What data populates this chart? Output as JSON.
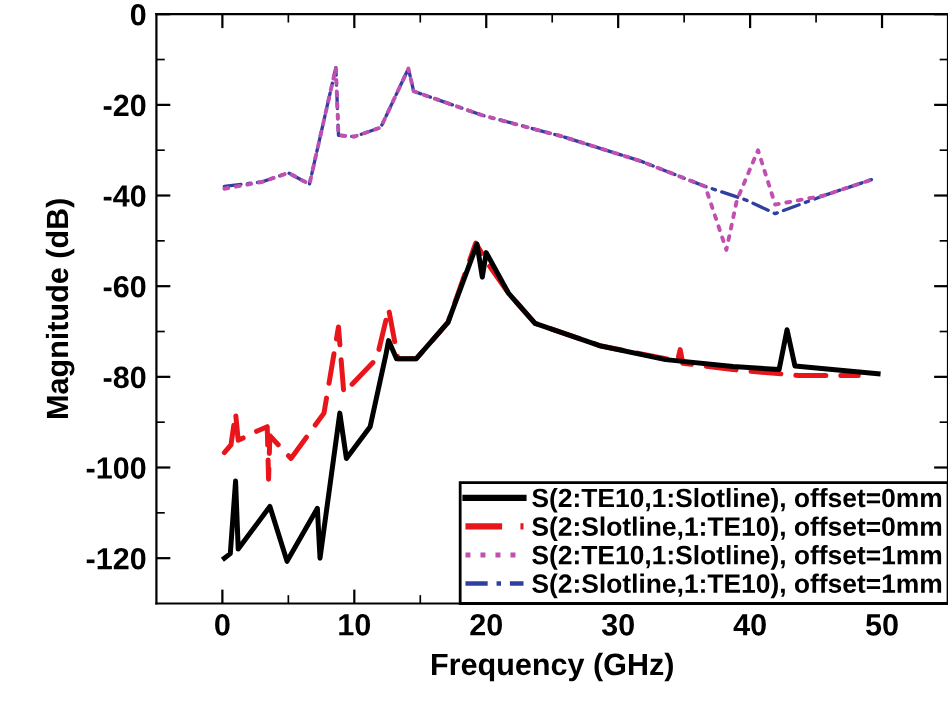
{
  "chart_data": {
    "type": "line",
    "xlabel": "Frequency (GHz)",
    "ylabel": "Magnitude (dB)",
    "xlim": [
      -5,
      55
    ],
    "ylim": [
      -130,
      0
    ],
    "xticks": [
      0,
      {
        "value": 5,
        "label": null
      },
      10,
      {
        "value": 15,
        "label": null
      },
      20,
      {
        "value": 25,
        "label": null
      },
      30,
      {
        "value": 35,
        "label": null
      },
      40,
      {
        "value": 45,
        "label": null
      },
      50
    ],
    "yticks": [
      -120,
      {
        "value": -110,
        "label": null
      },
      -100,
      {
        "value": -90,
        "label": null
      },
      -80,
      {
        "value": -70,
        "label": null
      },
      -60,
      {
        "value": -50,
        "label": null
      },
      -40,
      {
        "value": -30,
        "label": null
      },
      -20,
      {
        "value": -10,
        "label": null
      },
      0
    ],
    "grid": false,
    "legend": "bottom right",
    "series": [
      {
        "name": "S(2:TE10,1:Slotline), offset=0mm",
        "color": "#000000",
        "line_style": "solid",
        "x": [
          0.15,
          0.6,
          1.0,
          1.2,
          3.6,
          4.9,
          7.2,
          7.4,
          8.9,
          9.4,
          11.2,
          12.4,
          12.6,
          13.2,
          14.7,
          17.1,
          19.3,
          19.7,
          20.0,
          21.7,
          23.7,
          28.7,
          33.6,
          38.7,
          42.2,
          42.8,
          43.4,
          49.7
        ],
        "values": [
          -120,
          -119,
          -103,
          -118,
          -108.6,
          -120.7,
          -109,
          -120,
          -88,
          -98,
          -91,
          -75,
          -72,
          -76,
          -76,
          -68,
          -50.7,
          -58,
          -52.6,
          -61.6,
          -68.2,
          -73.2,
          -76.2,
          -77.7,
          -78.4,
          -69.6,
          -77.6,
          -79.3
        ]
      },
      {
        "name": "S(2:Slotline,1:TE10), offset=0mm",
        "color": "#e8161b",
        "line_style": "dashed",
        "x": [
          0.15,
          0.65,
          1.0,
          1.2,
          2.6,
          3.4,
          3.5,
          3.6,
          5.2,
          7.7,
          8.8,
          9.2,
          11.7,
          12.6,
          13.3,
          14.7,
          17.1,
          19.2,
          20.3,
          21.7,
          23.7,
          28.7,
          34.5,
          34.7,
          34.9,
          38.7,
          43.7,
          48.2
        ],
        "values": [
          -96.7,
          -95,
          -88,
          -94,
          -92,
          -91,
          -102.6,
          -93,
          -98,
          -88,
          -69,
          -83.5,
          -76,
          -65,
          -76,
          -76,
          -68,
          -50.5,
          -55.8,
          -61.6,
          -68.2,
          -73.2,
          -76.5,
          -74,
          -77,
          -78.4,
          -79.7,
          -79.7
        ]
      },
      {
        "name": "S(2:TE10,1:Slotline), offset=1mm",
        "color": "#c050b0",
        "line_style": "dotted",
        "x": [
          0.15,
          3.0,
          5.0,
          6.6,
          8.6,
          8.8,
          10.0,
          12.0,
          14.1,
          14.5,
          19.7,
          25.8,
          31.7,
          36.6,
          38.2,
          39.0,
          40.6,
          41.9,
          45.6,
          49.2
        ],
        "values": [
          -38.5,
          -37,
          -35,
          -37.5,
          -11.8,
          -26.7,
          -27,
          -25,
          -12,
          -17,
          -22.3,
          -27,
          -32.4,
          -38,
          -52,
          -41,
          -30,
          -42,
          -40,
          -36.5
        ]
      },
      {
        "name": "S(2:Slotline,1:TE10), offset=1mm",
        "color": "#3040a0",
        "line_style": "dashdot",
        "x": [
          0.15,
          3.0,
          5.0,
          6.6,
          8.6,
          8.8,
          10.0,
          12.0,
          14.1,
          14.5,
          19.7,
          25.8,
          31.7,
          36.6,
          39.7,
          41.9,
          45.6,
          49.2
        ],
        "values": [
          -38,
          -37,
          -35,
          -37.5,
          -11.8,
          -26.7,
          -27,
          -25,
          -12,
          -17,
          -22.3,
          -27,
          -32.4,
          -38,
          -41,
          -44,
          -40,
          -36.5
        ]
      }
    ]
  }
}
